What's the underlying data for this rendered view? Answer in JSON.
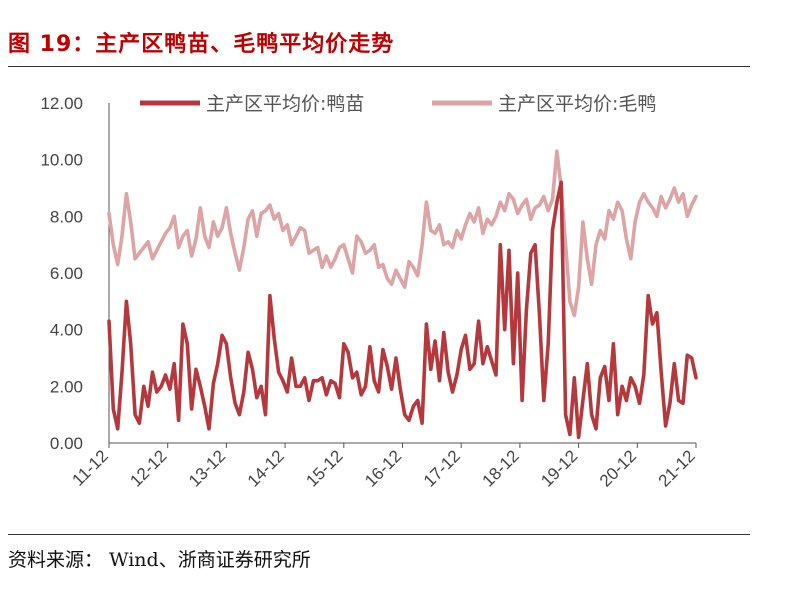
{
  "figure": {
    "title": "图 19：主产区鸭苗、毛鸭平均价走势",
    "source": "资料来源： Wind、浙商证券研究所"
  },
  "chart_data": {
    "type": "line",
    "x_ticks": [
      "11-12",
      "12-12",
      "13-12",
      "14-12",
      "15-12",
      "16-12",
      "17-12",
      "18-12",
      "19-12",
      "20-12",
      "21-12"
    ],
    "y_ticks": [
      "0.00",
      "2.00",
      "4.00",
      "6.00",
      "8.00",
      "10.00",
      "12.00"
    ],
    "ylim": [
      0,
      12
    ],
    "grid": false,
    "legend_position": "top",
    "series": [
      {
        "name": "主产区平均价:鸭苗",
        "color": "#b5393c",
        "values": [
          4.3,
          1.2,
          0.5,
          2.5,
          5.0,
          3.5,
          1.0,
          0.7,
          2.0,
          1.3,
          2.5,
          1.8,
          2.0,
          2.4,
          1.9,
          2.8,
          0.8,
          4.2,
          3.5,
          1.2,
          2.6,
          2.0,
          1.3,
          0.5,
          2.1,
          2.8,
          3.8,
          3.5,
          2.3,
          1.4,
          1.0,
          1.8,
          3.2,
          2.6,
          1.6,
          2.0,
          1.0,
          5.2,
          3.7,
          2.5,
          2.2,
          1.8,
          3.0,
          2.0,
          2.0,
          2.3,
          1.5,
          2.2,
          2.2,
          2.3,
          1.7,
          2.2,
          2.1,
          1.6,
          3.5,
          3.2,
          2.3,
          2.5,
          1.7,
          2.0,
          3.4,
          2.2,
          1.8,
          3.3,
          2.7,
          1.9,
          3.0,
          1.9,
          1.0,
          0.8,
          1.3,
          1.5,
          0.7,
          4.2,
          2.6,
          3.6,
          2.2,
          3.9,
          2.5,
          1.8,
          2.4,
          3.3,
          3.8,
          2.6,
          2.8,
          4.3,
          2.8,
          3.4,
          2.9,
          2.4,
          7.0,
          4.0,
          6.8,
          2.8,
          6.0,
          1.5,
          4.7,
          6.7,
          7.0,
          4.5,
          1.5,
          3.5,
          7.5,
          8.5,
          9.2,
          1.0,
          0.3,
          2.3,
          0.2,
          1.5,
          2.8,
          1.0,
          0.5,
          2.3,
          2.7,
          1.5,
          3.5,
          1.0,
          2.0,
          1.5,
          2.3,
          2.0,
          1.4,
          2.4,
          5.2,
          4.2,
          4.6,
          2.5,
          0.6,
          1.4,
          2.8,
          1.5,
          1.4,
          3.1,
          3.0,
          2.3
        ]
      },
      {
        "name": "主产区平均价:毛鸭",
        "color": "#dda3a5",
        "values": [
          8.1,
          7.0,
          6.3,
          7.3,
          8.8,
          7.8,
          6.5,
          6.7,
          6.9,
          7.1,
          6.5,
          6.8,
          7.1,
          7.4,
          7.6,
          8.0,
          6.9,
          7.3,
          7.5,
          6.6,
          7.2,
          8.3,
          7.3,
          6.9,
          7.8,
          7.3,
          7.6,
          8.3,
          7.4,
          6.7,
          6.1,
          6.9,
          7.9,
          8.2,
          7.3,
          8.1,
          8.2,
          8.4,
          7.9,
          8.1,
          7.5,
          7.7,
          7.0,
          7.3,
          7.6,
          7.5,
          6.7,
          6.8,
          6.9,
          6.2,
          6.6,
          6.2,
          6.5,
          6.9,
          7.0,
          6.5,
          6.0,
          7.3,
          7.1,
          6.7,
          6.8,
          7.0,
          6.2,
          6.3,
          5.8,
          5.6,
          6.1,
          5.8,
          5.5,
          6.4,
          6.2,
          5.9,
          7.0,
          8.5,
          7.5,
          7.4,
          7.7,
          7.0,
          7.1,
          6.9,
          7.5,
          7.2,
          7.7,
          8.1,
          7.8,
          8.3,
          7.4,
          7.9,
          7.7,
          8.0,
          8.5,
          8.2,
          8.8,
          8.6,
          8.1,
          8.4,
          8.6,
          7.9,
          8.3,
          8.4,
          8.7,
          8.2,
          8.6,
          10.3,
          9.0,
          7.0,
          5.0,
          4.5,
          5.5,
          7.8,
          6.5,
          5.6,
          7.0,
          7.5,
          7.2,
          8.2,
          7.9,
          8.5,
          8.2,
          7.2,
          6.5,
          7.8,
          8.5,
          8.8,
          8.5,
          8.3,
          8.0,
          8.7,
          8.3,
          8.6,
          9.0,
          8.5,
          8.8,
          8.0,
          8.4,
          8.7
        ]
      }
    ]
  }
}
